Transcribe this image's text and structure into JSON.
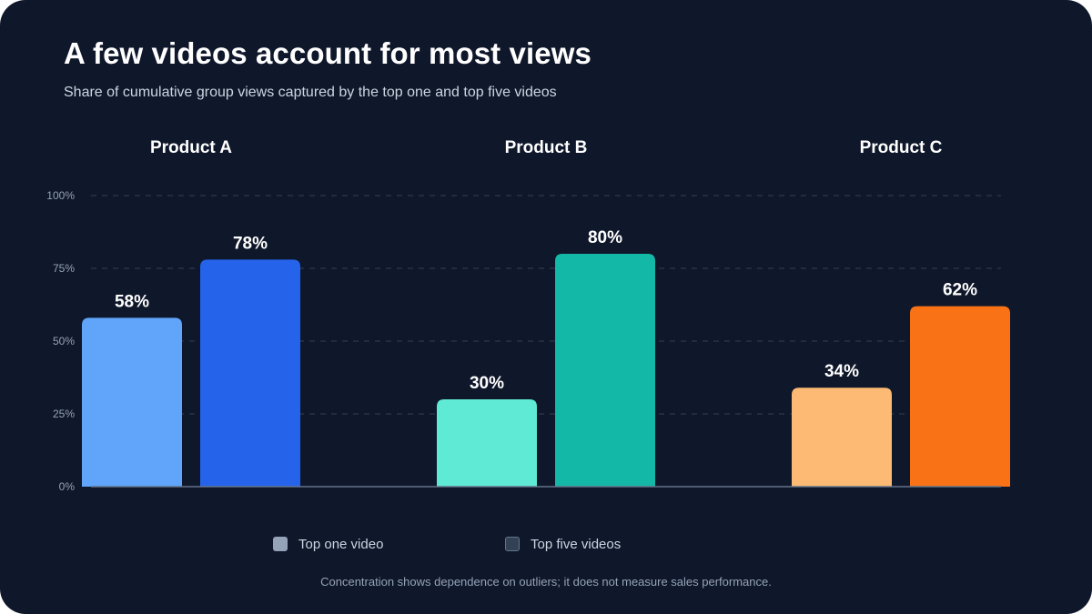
{
  "chart_data": {
    "type": "bar",
    "title": "A few videos account for most views",
    "subtitle": "Share of cumulative group views captured by the top one and top five videos",
    "categories": [
      "Product A",
      "Product B",
      "Product C"
    ],
    "series": [
      {
        "name": "Top one video",
        "values": [
          58,
          30,
          34
        ],
        "colors": [
          "#60a5fa",
          "#5eead4",
          "#fdba74"
        ],
        "legend_color": "#94a3b8"
      },
      {
        "name": "Top five videos",
        "values": [
          78,
          80,
          62
        ],
        "colors": [
          "#2563eb",
          "#14b8a6",
          "#f97316"
        ],
        "legend_color": "#334155"
      }
    ],
    "value_suffix": "%",
    "ylim": [
      0,
      100
    ],
    "yticks": [
      0,
      25,
      50,
      75,
      100
    ],
    "ytick_labels": [
      "0%",
      "25%",
      "50%",
      "75%",
      "100%"
    ],
    "grid": true,
    "legend_position": "bottom",
    "note": "Concentration shows dependence on outliers; it does not measure sales performance."
  },
  "colors": {
    "background": "#0f172a",
    "grid": "#334155",
    "baseline": "#64748b",
    "tick_text": "#94a3b8"
  }
}
